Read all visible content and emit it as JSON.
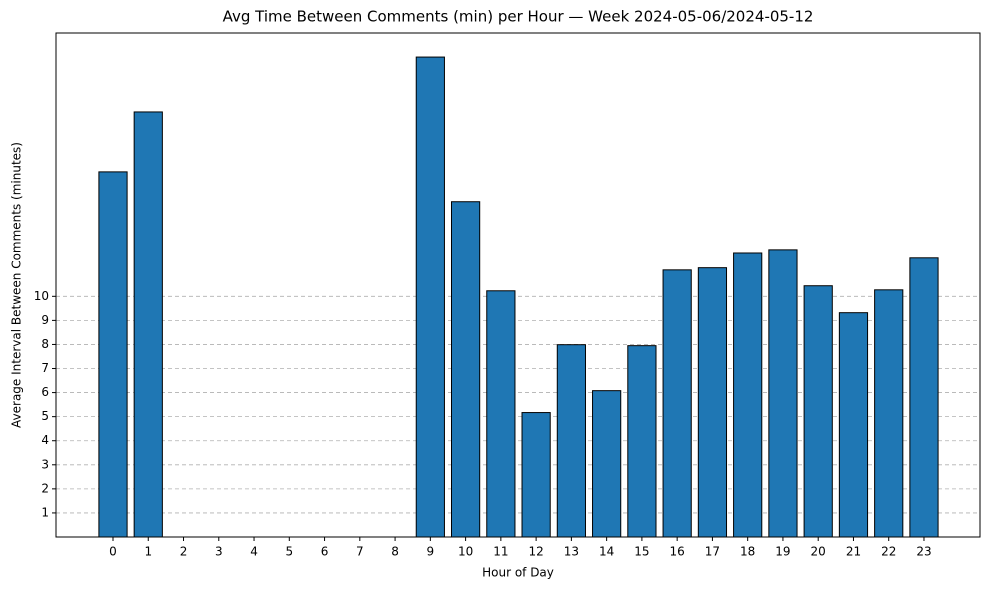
{
  "chart_data": {
    "type": "bar",
    "title": "Avg Time Between Comments (min) per Hour — Week 2024-05-06/2024-05-12",
    "xlabel": "Hour of Day",
    "ylabel": "Average Interval Between Comments (minutes)",
    "categories": [
      "0",
      "1",
      "2",
      "3",
      "4",
      "5",
      "6",
      "7",
      "8",
      "9",
      "10",
      "11",
      "12",
      "13",
      "14",
      "15",
      "16",
      "17",
      "18",
      "19",
      "20",
      "21",
      "22",
      "23"
    ],
    "values": [
      15.17,
      17.66,
      0,
      0,
      0,
      0,
      0,
      0,
      0,
      19.94,
      13.93,
      10.23,
      5.17,
      7.99,
      6.08,
      7.95,
      11.1,
      11.19,
      11.8,
      11.93,
      10.44,
      9.32,
      10.27,
      11.6
    ],
    "color": "#1f77b4",
    "ylim": [
      0,
      20.94
    ],
    "yticks": [
      1,
      2,
      3,
      4,
      5,
      6,
      7,
      8,
      9,
      10
    ],
    "grid": true
  }
}
